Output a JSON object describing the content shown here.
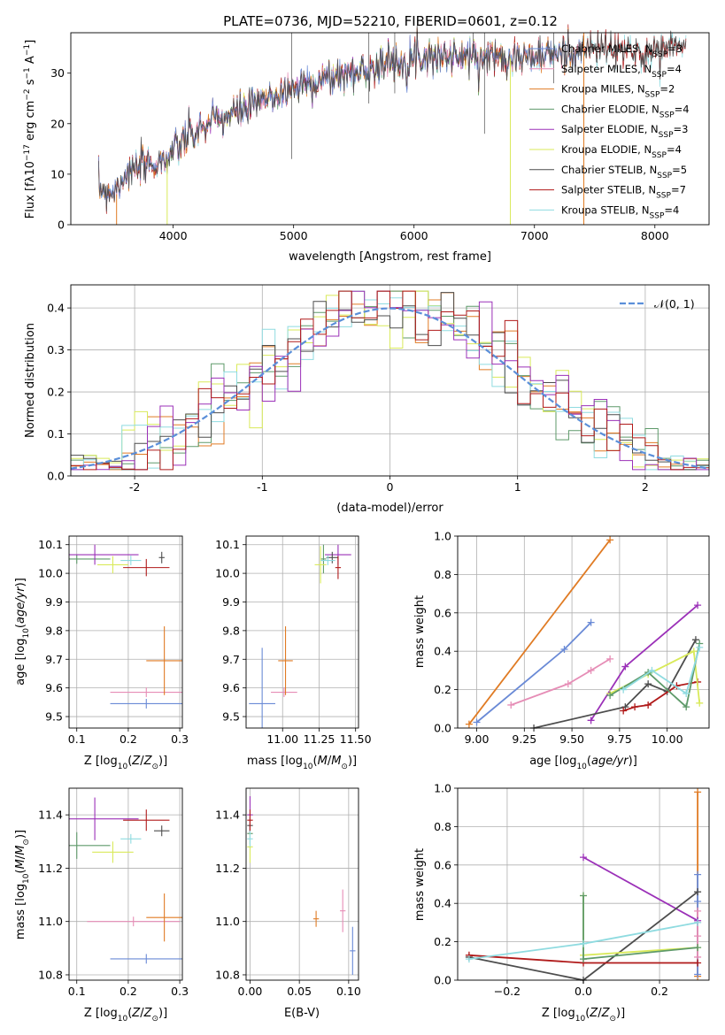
{
  "figure": {
    "title": "PLATE=0736, MJD=52210, FIBERID=0601, z=0.12"
  },
  "colors": {
    "Chabrier MILES": "#6a8ad6",
    "Salpeter MILES": "#e68db6",
    "Kroupa MILES": "#e07b24",
    "Chabrier ELODIE": "#5e9a6a",
    "Salpeter ELODIE": "#9b30b8",
    "Kroupa ELODIE": "#d9ea5a",
    "Chabrier STELIB": "#4d4d4d",
    "Salpeter STELIB": "#b01a1a",
    "Kroupa STELIB": "#8fdbe0",
    "gaussian": "#5b8fd9"
  },
  "chart_data": [
    {
      "id": "spectrum",
      "type": "line",
      "xlabel": "wavelength [Angstrom, rest frame]",
      "ylabel": "Flux [f",
      "xlim": [
        3150,
        8450
      ],
      "ylim": [
        0,
        38
      ],
      "xticks": [
        4000,
        5000,
        6000,
        7000,
        8000
      ],
      "yticks": [
        0,
        10,
        20,
        30
      ],
      "legend": [
        {
          "name": "Chabrier MILES",
          "nssp": "3"
        },
        {
          "name": "Salpeter MILES",
          "nssp": "4"
        },
        {
          "name": "Kroupa MILES",
          "nssp": "2"
        },
        {
          "name": "Chabrier ELODIE",
          "nssp": "4"
        },
        {
          "name": "Salpeter ELODIE",
          "nssp": "3"
        },
        {
          "name": "Kroupa ELODIE",
          "nssp": "4"
        },
        {
          "name": "Chabrier STELIB",
          "nssp": "5"
        },
        {
          "name": "Salpeter STELIB",
          "nssp": "7"
        },
        {
          "name": "Kroupa STELIB",
          "nssp": "4"
        }
      ],
      "continuum": [
        [
          3380,
          7
        ],
        [
          3500,
          6.5
        ],
        [
          3600,
          10
        ],
        [
          3800,
          12
        ],
        [
          3950,
          13
        ],
        [
          4100,
          17
        ],
        [
          4300,
          20
        ],
        [
          4500,
          22
        ],
        [
          4700,
          24
        ],
        [
          4900,
          26
        ],
        [
          5100,
          28
        ],
        [
          5300,
          29
        ],
        [
          5500,
          30
        ],
        [
          5700,
          31.5
        ],
        [
          5900,
          32.5
        ],
        [
          6100,
          33.5
        ],
        [
          6300,
          33.5
        ],
        [
          6500,
          33
        ],
        [
          6700,
          33.5
        ],
        [
          6900,
          33
        ],
        [
          7100,
          33.5
        ],
        [
          7300,
          34
        ],
        [
          7500,
          35
        ],
        [
          7700,
          34.5
        ],
        [
          7900,
          34
        ],
        [
          8100,
          35
        ],
        [
          8250,
          35.5
        ]
      ],
      "edges": {
        "Kroupa MILES": [
          3530,
          7410
        ],
        "Kroupa ELODIE": [
          3950,
          6800
        ],
        "Chabrier STELIB": [
          3920,
          7420
        ]
      }
    },
    {
      "id": "residuals",
      "type": "histogram",
      "xlabel": "(data-model)/error",
      "ylabel": "Normed distribution",
      "xlim": [
        -2.5,
        2.5
      ],
      "ylim": [
        0,
        0.455
      ],
      "xticks": [
        -2,
        -1,
        0,
        1,
        2
      ],
      "yticks": [
        0.0,
        0.1,
        0.2,
        0.3,
        0.4
      ],
      "legend": "𝒩(0, 1)",
      "bin_width": 0.1
    },
    {
      "id": "age-vs-Z",
      "type": "scatter",
      "xlabel": "Z [log",
      "ylabel": "age  [log",
      "xlim": [
        0.085,
        0.305
      ],
      "ylim": [
        9.46,
        10.13
      ],
      "xticks": [
        0.1,
        0.2,
        0.3
      ],
      "yticks": [
        9.5,
        9.6,
        9.7,
        9.8,
        9.9,
        10.0,
        10.1
      ],
      "points": [
        {
          "model": "Chabrier MILES",
          "x": 0.235,
          "xerr": 0.07,
          "y": 9.545,
          "yerr": 0.0
        },
        {
          "model": "Salpeter MILES",
          "x": 0.235,
          "xerr": 0.07,
          "y": 9.585,
          "yerr": 0.0
        },
        {
          "model": "Kroupa MILES",
          "x": 0.27,
          "xerr": 0.035,
          "y": 9.695,
          "yerr": 0.12
        },
        {
          "model": "Chabrier ELODIE",
          "x": 0.1,
          "xerr": 0.065,
          "y": 10.05,
          "yerr": 0.0
        },
        {
          "model": "Salpeter ELODIE",
          "x": 0.135,
          "xerr": 0.085,
          "y": 10.065,
          "yerr": 0.035
        },
        {
          "model": "Kroupa ELODIE",
          "x": 0.17,
          "xerr": 0.03,
          "y": 10.03,
          "yerr": 0.03
        },
        {
          "model": "Chabrier STELIB",
          "x": 0.265,
          "xerr": 0.0,
          "y": 10.055,
          "yerr": 0.02
        },
        {
          "model": "Salpeter STELIB",
          "x": 0.235,
          "xerr": 0.045,
          "y": 10.02,
          "yerr": 0.03
        },
        {
          "model": "Kroupa STELIB",
          "x": 0.205,
          "xerr": 0.02,
          "y": 10.045,
          "yerr": 0.0
        }
      ]
    },
    {
      "id": "age-vs-mass",
      "type": "scatter",
      "xlabel": "mass [log",
      "ylabel": "",
      "xlim": [
        10.75,
        11.52
      ],
      "ylim": [
        9.46,
        10.13
      ],
      "xticks": [
        11.0,
        11.25,
        11.5
      ],
      "xticklabels": [
        "11.00",
        "11.25",
        "11.50"
      ],
      "yticks": [
        9.5,
        9.6,
        9.7,
        9.8,
        9.9,
        10.0,
        10.1
      ],
      "points": [
        {
          "model": "Chabrier MILES",
          "x": 10.86,
          "xerr": 0.09,
          "y": 9.545,
          "yerr": 0.195
        },
        {
          "model": "Salpeter MILES",
          "x": 11.01,
          "xerr": 0.09,
          "y": 9.585,
          "yerr": 0.0
        },
        {
          "model": "Kroupa MILES",
          "x": 11.02,
          "xerr": 0.05,
          "y": 9.695,
          "yerr": 0.12
        },
        {
          "model": "Chabrier ELODIE",
          "x": 11.28,
          "xerr": 0.0,
          "y": 10.05,
          "yerr": 0.05
        },
        {
          "model": "Salpeter ELODIE",
          "x": 11.38,
          "xerr": 0.09,
          "y": 10.065,
          "yerr": 0.035
        },
        {
          "model": "Kroupa ELODIE",
          "x": 11.26,
          "xerr": 0.04,
          "y": 10.03,
          "yerr": 0.065
        },
        {
          "model": "Chabrier STELIB",
          "x": 11.34,
          "xerr": 0.04,
          "y": 10.055,
          "yerr": 0.02
        },
        {
          "model": "Salpeter STELIB",
          "x": 11.38,
          "xerr": 0.0,
          "y": 10.02,
          "yerr": 0.04
        },
        {
          "model": "Kroupa STELIB",
          "x": 11.31,
          "xerr": 0.05,
          "y": 10.045,
          "yerr": 0.0
        }
      ]
    },
    {
      "id": "weight-vs-age",
      "type": "line",
      "xlabel": "age  [log",
      "ylabel": "mass weight",
      "xlim": [
        8.9,
        10.22
      ],
      "ylim": [
        0,
        1.0
      ],
      "xticks": [
        9.0,
        9.25,
        9.5,
        9.75,
        10.0
      ],
      "xticklabels": [
        "9.00",
        "9.25",
        "9.50",
        "9.75",
        "10.00"
      ],
      "yticks": [
        0.0,
        0.2,
        0.4,
        0.6,
        0.8,
        1.0
      ],
      "series": [
        {
          "model": "Kroupa MILES",
          "x": [
            8.96,
            9.7
          ],
          "y": [
            0.02,
            0.98
          ]
        },
        {
          "model": "Chabrier MILES",
          "x": [
            9.0,
            9.46,
            9.6
          ],
          "y": [
            0.03,
            0.41,
            0.55
          ]
        },
        {
          "model": "Salpeter MILES",
          "x": [
            9.18,
            9.48,
            9.6,
            9.7
          ],
          "y": [
            0.12,
            0.23,
            0.3,
            0.36
          ]
        },
        {
          "model": "Salpeter ELODIE",
          "x": [
            9.6,
            9.78,
            10.16
          ],
          "y": [
            0.04,
            0.32,
            0.64
          ]
        },
        {
          "model": "Chabrier STELIB",
          "x": [
            9.3,
            9.78,
            9.9,
            10.0,
            10.15
          ],
          "y": [
            0.0,
            0.11,
            0.23,
            0.19,
            0.46
          ]
        },
        {
          "model": "Salpeter STELIB",
          "x": [
            9.77,
            9.83,
            9.9,
            10.05,
            10.16
          ],
          "y": [
            0.09,
            0.11,
            0.12,
            0.22,
            0.24
          ]
        },
        {
          "model": "Kroupa ELODIE",
          "x": [
            9.7,
            9.9,
            10.14,
            10.17
          ],
          "y": [
            0.18,
            0.28,
            0.4,
            0.13
          ]
        },
        {
          "model": "Chabrier ELODIE",
          "x": [
            9.7,
            9.9,
            10.1,
            10.17
          ],
          "y": [
            0.17,
            0.29,
            0.11,
            0.44
          ]
        },
        {
          "model": "Kroupa STELIB",
          "x": [
            9.77,
            9.92,
            10.1,
            10.17
          ],
          "y": [
            0.2,
            0.3,
            0.18,
            0.42
          ]
        }
      ]
    },
    {
      "id": "mass-vs-Z",
      "type": "scatter",
      "xlabel": "Z [log",
      "ylabel": "mass [log",
      "xlim": [
        0.085,
        0.305
      ],
      "ylim": [
        10.78,
        11.5
      ],
      "xticks": [
        0.1,
        0.2,
        0.3
      ],
      "yticks": [
        10.8,
        11.0,
        11.2,
        11.4
      ],
      "points": [
        {
          "model": "Chabrier MILES",
          "x": 0.235,
          "xerr": 0.07,
          "y": 10.86,
          "yerr": 0.0
        },
        {
          "model": "Salpeter MILES",
          "x": 0.21,
          "xerr": 0.09,
          "y": 11.0,
          "yerr": 0.0
        },
        {
          "model": "Kroupa MILES",
          "x": 0.27,
          "xerr": 0.035,
          "y": 11.015,
          "yerr": 0.09
        },
        {
          "model": "Chabrier ELODIE",
          "x": 0.1,
          "xerr": 0.065,
          "y": 11.285,
          "yerr": 0.05
        },
        {
          "model": "Salpeter ELODIE",
          "x": 0.135,
          "xerr": 0.085,
          "y": 11.385,
          "yerr": 0.08
        },
        {
          "model": "Kroupa ELODIE",
          "x": 0.17,
          "xerr": 0.04,
          "y": 11.26,
          "yerr": 0.04
        },
        {
          "model": "Chabrier STELIB",
          "x": 0.265,
          "xerr": 0.015,
          "y": 11.34,
          "yerr": 0.02
        },
        {
          "model": "Salpeter STELIB",
          "x": 0.235,
          "xerr": 0.045,
          "y": 11.38,
          "yerr": 0.04
        },
        {
          "model": "Kroupa STELIB",
          "x": 0.205,
          "xerr": 0.02,
          "y": 11.31,
          "yerr": 0.0
        }
      ]
    },
    {
      "id": "mass-vs-ebv",
      "type": "scatter",
      "xlabel": "E(B-V)",
      "ylabel": "",
      "xlim": [
        -0.004,
        0.11
      ],
      "ylim": [
        10.78,
        11.5
      ],
      "xticks": [
        0.0,
        0.05,
        0.1
      ],
      "xticklabels": [
        "0.00",
        "0.05",
        "0.10"
      ],
      "yticks": [
        10.8,
        11.0,
        11.2,
        11.4
      ],
      "points": [
        {
          "model": "Chabrier MILES",
          "x": 0.104,
          "xerr": 0.0,
          "y": 10.89,
          "yerr": 0.09
        },
        {
          "model": "Salpeter MILES",
          "x": 0.094,
          "xerr": 0.0,
          "y": 11.04,
          "yerr": 0.08
        },
        {
          "model": "Kroupa MILES",
          "x": 0.067,
          "xerr": 0.0,
          "y": 11.01,
          "yerr": 0.03
        },
        {
          "model": "Chabrier ELODIE",
          "x": 0.0,
          "xerr": 0.0,
          "y": 11.33,
          "yerr": 0.04
        },
        {
          "model": "Salpeter ELODIE",
          "x": 0.0,
          "xerr": 0.0,
          "y": 11.4,
          "yerr": 0.07
        },
        {
          "model": "Kroupa ELODIE",
          "x": 0.0,
          "xerr": 0.0,
          "y": 11.28,
          "yerr": 0.06
        },
        {
          "model": "Chabrier STELIB",
          "x": 0.0,
          "xerr": 0.0,
          "y": 11.36,
          "yerr": 0.03
        },
        {
          "model": "Salpeter STELIB",
          "x": 0.0,
          "xerr": 0.0,
          "y": 11.38,
          "yerr": 0.04
        },
        {
          "model": "Kroupa STELIB",
          "x": 0.0,
          "xerr": 0.0,
          "y": 11.31,
          "yerr": 0.03
        }
      ]
    },
    {
      "id": "weight-vs-Z",
      "type": "line",
      "xlabel": "Z [log",
      "ylabel": "mass weight",
      "xlim": [
        -0.33,
        0.33
      ],
      "ylim": [
        0,
        1.0
      ],
      "xticks": [
        -0.2,
        0.0,
        0.2
      ],
      "xticklabels": [
        "−0.2",
        "0.0",
        "0.2"
      ],
      "yticks": [
        0.0,
        0.2,
        0.4,
        0.6,
        0.8,
        1.0
      ],
      "series": [
        {
          "model": "Kroupa MILES",
          "x": [
            0.3,
            0.3
          ],
          "y": [
            0.02,
            0.98
          ]
        },
        {
          "model": "Chabrier MILES",
          "x": [
            0.3,
            0.3,
            0.3
          ],
          "y": [
            0.03,
            0.41,
            0.55
          ]
        },
        {
          "model": "Salpeter MILES",
          "x": [
            0.3,
            0.3,
            0.3,
            0.3
          ],
          "y": [
            0.12,
            0.23,
            0.3,
            0.36
          ]
        },
        {
          "model": "Salpeter ELODIE",
          "x": [
            0.0,
            0.3
          ],
          "y": [
            0.64,
            0.31
          ]
        },
        {
          "model": "Chabrier STELIB",
          "x": [
            -0.3,
            0.0,
            0.3
          ],
          "y": [
            0.12,
            0.0,
            0.46
          ]
        },
        {
          "model": "Salpeter STELIB",
          "x": [
            -0.3,
            0.0,
            0.3
          ],
          "y": [
            0.13,
            0.09,
            0.09
          ]
        },
        {
          "model": "Kroupa ELODIE",
          "x": [
            0.0,
            0.0,
            0.3
          ],
          "y": [
            0.44,
            0.13,
            0.17
          ]
        },
        {
          "model": "Chabrier ELODIE",
          "x": [
            0.0,
            0.0,
            0.3
          ],
          "y": [
            0.44,
            0.11,
            0.17
          ]
        },
        {
          "model": "Kroupa STELIB",
          "x": [
            -0.3,
            0.0,
            0.3
          ],
          "y": [
            0.11,
            0.19,
            0.3
          ]
        }
      ]
    }
  ]
}
